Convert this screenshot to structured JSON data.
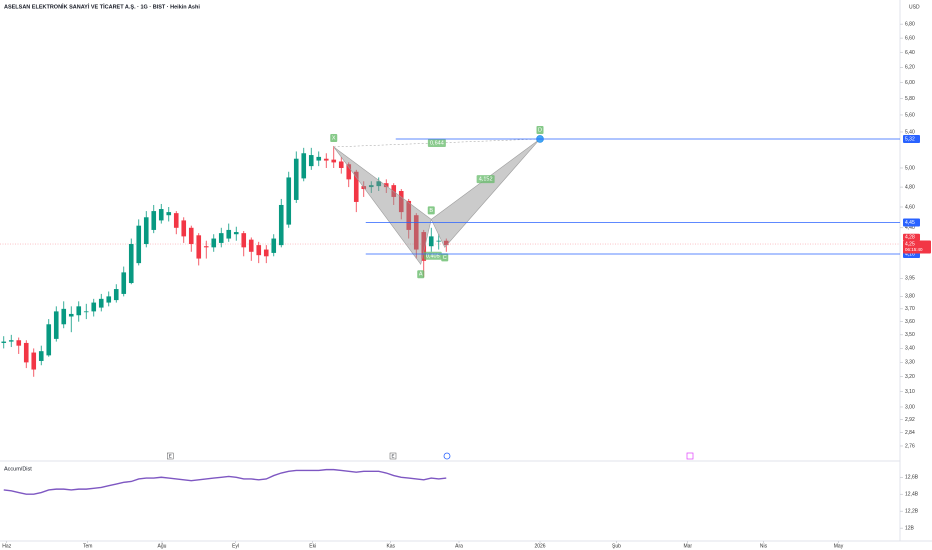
{
  "title": "ASELSAN ELEKTRONİK SANAYİ VE TİCARET A.Ş. · 1G · BIST · Heikin Ashi",
  "currency": "USD",
  "chart_data": [
    {
      "type": "candlestick",
      "up_color": "#089981",
      "down_color": "#f23645",
      "log_scale": true,
      "ylim": [
        2.69,
        7.16
      ],
      "yticks": [
        {
          "value": 6.8,
          "label": "6,80"
        },
        {
          "value": 6.6,
          "label": "6,60"
        },
        {
          "value": 6.4,
          "label": "6,40"
        },
        {
          "value": 6.2,
          "label": "6,20"
        },
        {
          "value": 6.0,
          "label": "6,00"
        },
        {
          "value": 5.8,
          "label": "5,80"
        },
        {
          "value": 5.6,
          "label": "5,60"
        },
        {
          "value": 5.4,
          "label": "5,40"
        },
        {
          "value": 5.0,
          "label": "5,00"
        },
        {
          "value": 4.8,
          "label": "4,80"
        },
        {
          "value": 4.6,
          "label": "4,60"
        },
        {
          "value": 4.4,
          "label": "4,40"
        },
        {
          "value": 3.95,
          "label": "3,95"
        },
        {
          "value": 3.8,
          "label": "3,80"
        },
        {
          "value": 3.7,
          "label": "3,70"
        },
        {
          "value": 3.6,
          "label": "3,60"
        },
        {
          "value": 3.5,
          "label": "3,50"
        },
        {
          "value": 3.4,
          "label": "3,40"
        },
        {
          "value": 3.3,
          "label": "3,30"
        },
        {
          "value": 3.2,
          "label": "3,20"
        },
        {
          "value": 3.1,
          "label": "3,10"
        },
        {
          "value": 3.0,
          "label": "3,00"
        },
        {
          "value": 2.92,
          "label": "2,92"
        },
        {
          "value": 2.84,
          "label": "2,84"
        },
        {
          "value": 2.76,
          "label": "2,76"
        }
      ],
      "xlim": [
        -0.5,
        119.5
      ],
      "xticks": [
        {
          "value": 0.4,
          "label": "Haz"
        },
        {
          "value": 11.2,
          "label": "Tem"
        },
        {
          "value": 21.1,
          "label": "Ağu"
        },
        {
          "value": 30.9,
          "label": "Eyl"
        },
        {
          "value": 41.2,
          "label": "Eki"
        },
        {
          "value": 51.6,
          "label": "Kas"
        },
        {
          "value": 60.7,
          "label": "Ara"
        },
        {
          "value": 71.5,
          "label": "2026"
        },
        {
          "value": 81.7,
          "label": "Şub"
        },
        {
          "value": 91.2,
          "label": "Mar"
        },
        {
          "value": 101.3,
          "label": "Nis"
        },
        {
          "value": 111.3,
          "label": "May"
        }
      ],
      "open": [
        3.44,
        3.45,
        3.46,
        3.44,
        3.37,
        3.31,
        3.35,
        3.47,
        3.58,
        3.64,
        3.65,
        3.68,
        3.68,
        3.71,
        3.75,
        3.77,
        3.82,
        3.91,
        4.08,
        4.25,
        4.38,
        4.47,
        4.52,
        4.54,
        4.47,
        4.4,
        4.33,
        4.23,
        4.22,
        4.26,
        4.3,
        4.34,
        4.35,
        4.29,
        4.24,
        4.2,
        4.17,
        4.24,
        4.43,
        4.67,
        4.89,
        5.02,
        5.08,
        5.1,
        5.09,
        5.07,
        5.04,
        4.96,
        4.81,
        4.8,
        4.81,
        4.84,
        4.82,
        4.76,
        4.66,
        4.52,
        4.36,
        4.23,
        4.28,
        4.28
      ],
      "high": [
        3.49,
        3.5,
        3.48,
        3.46,
        3.4,
        3.42,
        3.62,
        3.72,
        3.76,
        3.72,
        3.76,
        3.74,
        3.78,
        3.82,
        3.84,
        3.9,
        4.05,
        4.3,
        4.48,
        4.56,
        4.62,
        4.63,
        4.6,
        4.56,
        4.5,
        4.42,
        4.35,
        4.28,
        4.34,
        4.4,
        4.44,
        4.41,
        4.37,
        4.31,
        4.27,
        4.24,
        4.34,
        4.68,
        4.96,
        5.18,
        5.22,
        5.22,
        5.18,
        5.16,
        5.24,
        5.12,
        5.06,
        4.98,
        4.86,
        4.86,
        4.9,
        4.88,
        4.84,
        4.78,
        4.68,
        4.54,
        4.38,
        4.4,
        4.34,
        4.3
      ],
      "low": [
        3.4,
        3.41,
        3.36,
        3.26,
        3.2,
        3.28,
        3.34,
        3.45,
        3.55,
        3.52,
        3.6,
        3.62,
        3.64,
        3.68,
        3.72,
        3.75,
        3.8,
        3.9,
        4.06,
        4.22,
        4.35,
        4.44,
        4.46,
        4.34,
        4.26,
        4.18,
        4.06,
        4.12,
        4.18,
        4.22,
        4.27,
        4.28,
        4.14,
        4.1,
        4.08,
        4.08,
        4.14,
        4.22,
        4.4,
        4.64,
        4.86,
        4.98,
        5.02,
        5.0,
        5.0,
        4.94,
        4.8,
        4.55,
        4.7,
        4.74,
        4.76,
        4.74,
        4.62,
        4.48,
        4.3,
        4.12,
        3.96,
        4.18,
        4.2,
        4.18
      ],
      "close": [
        3.45,
        3.46,
        3.42,
        3.3,
        3.25,
        3.38,
        3.58,
        3.68,
        3.7,
        3.66,
        3.72,
        3.68,
        3.75,
        3.78,
        3.8,
        3.86,
        4.0,
        4.25,
        4.42,
        4.5,
        4.56,
        4.58,
        4.55,
        4.4,
        4.32,
        4.25,
        4.12,
        4.22,
        4.3,
        4.35,
        4.38,
        4.36,
        4.22,
        4.18,
        4.15,
        4.14,
        4.3,
        4.62,
        4.9,
        5.1,
        5.16,
        5.14,
        5.12,
        5.08,
        5.06,
        5.0,
        4.88,
        4.65,
        4.78,
        4.82,
        4.86,
        4.8,
        4.7,
        4.55,
        4.38,
        4.2,
        4.1,
        4.32,
        4.28,
        4.24
      ],
      "price_lines": [
        {
          "value": 5.32,
          "label": "5,32"
        },
        {
          "value": 4.45,
          "label": "4,45"
        },
        {
          "value": 4.16,
          "label": "4,16"
        }
      ],
      "price_line_color": "#2962ff",
      "last_price": {
        "value": 4.25,
        "label": "4,25"
      },
      "bar_high": {
        "value": 4.28,
        "label": "4,28"
      },
      "countdown": "06:15:40",
      "pattern": {
        "color": "#66bb6a",
        "points": [
          {
            "label": "X",
            "x": 44.0,
            "y": 5.23
          },
          {
            "label": "A",
            "x": 55.6,
            "y": 4.07
          },
          {
            "label": "B",
            "x": 57.0,
            "y": 4.48
          },
          {
            "label": "C",
            "x": 58.8,
            "y": 4.22
          },
          {
            "label": "D",
            "x": 71.5,
            "y": 5.32
          }
        ],
        "ratio_labels": [
          "0,644",
          "4,152",
          "0,405"
        ]
      },
      "events": [
        {
          "label": "E",
          "x": 22.2
        },
        {
          "label": "E",
          "x": 51.9
        }
      ]
    },
    {
      "type": "line",
      "name": "Accum/Dist",
      "color": "#7e57c2",
      "ylim": [
        11.86,
        12.78
      ],
      "yticks": [
        {
          "value": 12.6,
          "label": "12,6B"
        },
        {
          "value": 12.4,
          "label": "12,4B"
        },
        {
          "value": 12.2,
          "label": "12,2B"
        },
        {
          "value": 12,
          "label": "12B"
        }
      ],
      "values": [
        12.45,
        12.44,
        12.42,
        12.4,
        12.4,
        12.42,
        12.45,
        12.46,
        12.46,
        12.45,
        12.46,
        12.46,
        12.47,
        12.48,
        12.5,
        12.52,
        12.54,
        12.55,
        12.58,
        12.59,
        12.59,
        12.6,
        12.59,
        12.58,
        12.57,
        12.56,
        12.57,
        12.58,
        12.59,
        12.6,
        12.61,
        12.6,
        12.58,
        12.58,
        12.57,
        12.58,
        12.62,
        12.65,
        12.67,
        12.68,
        12.68,
        12.68,
        12.68,
        12.69,
        12.69,
        12.68,
        12.67,
        12.66,
        12.67,
        12.67,
        12.67,
        12.65,
        12.62,
        12.6,
        12.59,
        12.58,
        12.57,
        12.59,
        12.58,
        12.59
      ]
    }
  ]
}
